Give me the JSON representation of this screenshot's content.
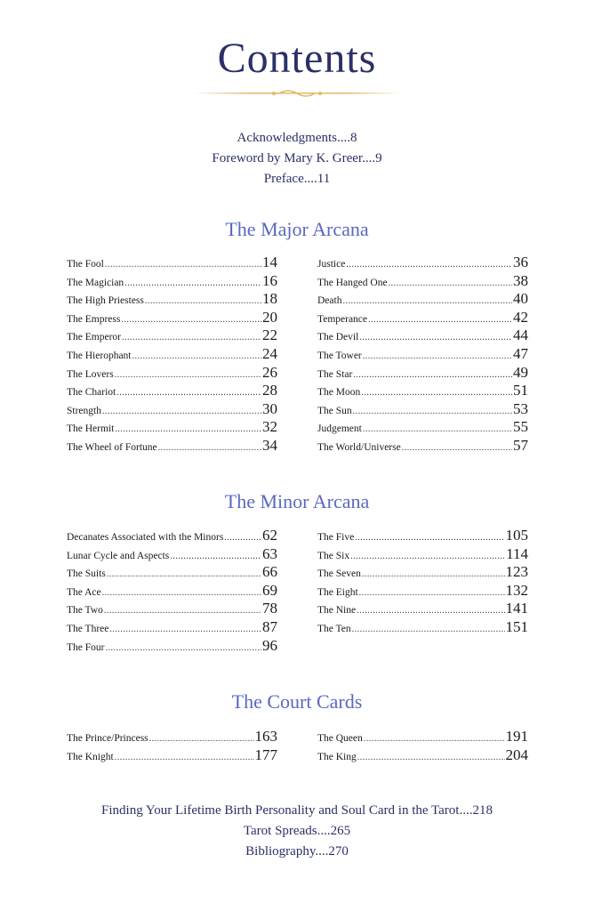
{
  "title": "Contents",
  "front": [
    "Acknowledgments....8",
    "Foreword by Mary K. Greer....9",
    "Preface....11"
  ],
  "sections": [
    {
      "title": "The Major Arcana",
      "left": [
        [
          "The Fool",
          "14"
        ],
        [
          "The Magician",
          "16"
        ],
        [
          "The High Priestess",
          "18"
        ],
        [
          "The Empress",
          "20"
        ],
        [
          "The Emperor",
          "22"
        ],
        [
          "The Hierophant",
          "24"
        ],
        [
          "The Lovers",
          "26"
        ],
        [
          "The Chariot",
          "28"
        ],
        [
          "Strength",
          "30"
        ],
        [
          "The Hermit",
          "32"
        ],
        [
          "The Wheel of Fortune",
          "34"
        ]
      ],
      "right": [
        [
          "Justice",
          "36"
        ],
        [
          "The Hanged One",
          "38"
        ],
        [
          "Death",
          "40"
        ],
        [
          "Temperance",
          "42"
        ],
        [
          "The Devil",
          "44"
        ],
        [
          "The Tower",
          "47"
        ],
        [
          "The Star",
          "49"
        ],
        [
          "The Moon",
          "51"
        ],
        [
          "The Sun",
          "53"
        ],
        [
          "Judgement",
          "55"
        ],
        [
          "The World/Universe",
          "57"
        ]
      ]
    },
    {
      "title": "The Minor Arcana",
      "left": [
        [
          "Decanates Associated with the Minors",
          "62"
        ],
        [
          "Lunar Cycle and Aspects",
          "63"
        ],
        [
          "The Suits",
          "66"
        ],
        [
          "The Ace",
          "69"
        ],
        [
          "The Two",
          "78"
        ],
        [
          "The Three",
          "87"
        ],
        [
          "The Four",
          "96"
        ]
      ],
      "right": [
        [
          "The Five",
          "105"
        ],
        [
          "The Six",
          "114"
        ],
        [
          "The Seven",
          "123"
        ],
        [
          "The Eight",
          "132"
        ],
        [
          "The Nine",
          "141"
        ],
        [
          "The Ten",
          "151"
        ]
      ]
    },
    {
      "title": "The Court Cards",
      "left": [
        [
          "The Prince/Princess",
          "163"
        ],
        [
          "The Knight",
          "177"
        ]
      ],
      "right": [
        [
          "The Queen",
          "191"
        ],
        [
          "The King",
          "204"
        ]
      ]
    }
  ],
  "back": [
    "Finding Your Lifetime Birth Personality and Soul Card in the Tarot....218",
    "Tarot Spreads....265",
    "Bibliography....270"
  ],
  "colors": {
    "title": "#2b3066",
    "section": "#5a68bf",
    "ornament": "#e3b866"
  }
}
